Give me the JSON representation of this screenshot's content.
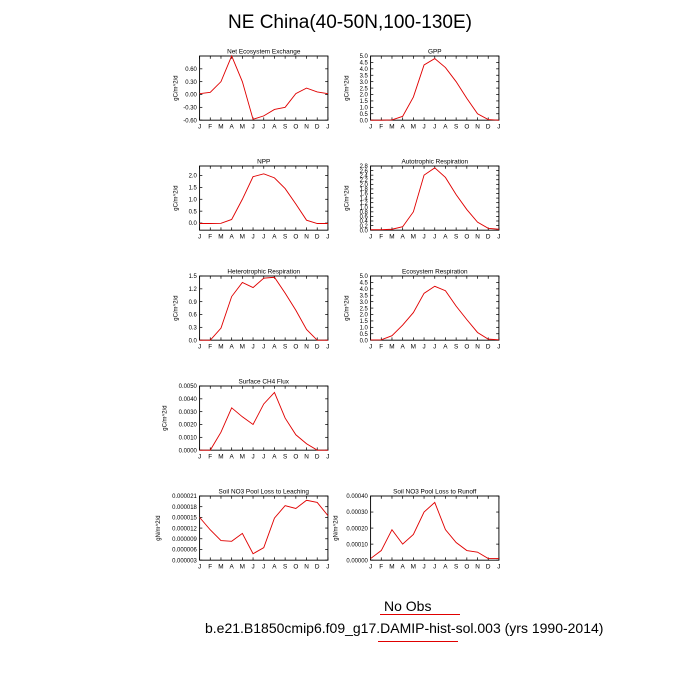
{
  "title": "NE China(40-50N,100-130E)",
  "legend": {
    "label": "No Obs",
    "color": "#e00000"
  },
  "case_label": "b.e21.B1850cmip6.f09_g17.DAMIP-hist-sol.003 (yrs 1990-2014)",
  "line_color": "#e00000",
  "chart_data": [
    {
      "type": "line",
      "title": "Net Ecosystem Exchange",
      "ylabel": "gC/m^2/d",
      "categories": [
        "J",
        "F",
        "M",
        "A",
        "M",
        "J",
        "J",
        "A",
        "S",
        "O",
        "N",
        "D",
        "J"
      ],
      "values": [
        0.02,
        0.05,
        0.3,
        0.9,
        0.3,
        -0.58,
        -0.5,
        -0.35,
        -0.3,
        0.02,
        0.15,
        0.06,
        0.02
      ],
      "ylim": [
        -0.6,
        0.9
      ],
      "yticks": [
        "-0.60",
        "-0.30",
        "0.00",
        "0.30",
        "0.60"
      ],
      "ytick_values": [
        -0.6,
        -0.3,
        0.0,
        0.3,
        0.6
      ]
    },
    {
      "type": "line",
      "title": "GPP",
      "ylabel": "gC/m^2/d",
      "categories": [
        "J",
        "F",
        "M",
        "A",
        "M",
        "J",
        "J",
        "A",
        "S",
        "O",
        "N",
        "D",
        "J"
      ],
      "values": [
        0.0,
        0.0,
        0.02,
        0.3,
        1.8,
        4.3,
        4.8,
        4.1,
        3.0,
        1.7,
        0.5,
        0.05,
        0.0
      ],
      "ylim": [
        0,
        5
      ],
      "yticks": [
        "0.0",
        "0.5",
        "1.0",
        "1.5",
        "2.0",
        "2.5",
        "3.0",
        "3.5",
        "4.0",
        "4.5",
        "5.0"
      ],
      "ytick_values": [
        0,
        0.5,
        1,
        1.5,
        2,
        2.5,
        3,
        3.5,
        4,
        4.5,
        5
      ]
    },
    {
      "type": "line",
      "title": "NPP",
      "ylabel": "gC/m^2/d",
      "categories": [
        "J",
        "F",
        "M",
        "A",
        "M",
        "J",
        "J",
        "A",
        "S",
        "O",
        "N",
        "D",
        "J"
      ],
      "values": [
        -0.02,
        -0.02,
        -0.01,
        0.15,
        1.0,
        1.95,
        2.07,
        1.9,
        1.45,
        0.8,
        0.12,
        -0.02,
        -0.02
      ],
      "ylim": [
        -0.3,
        2.4
      ],
      "yticks": [
        "0.0",
        "0.5",
        "1.0",
        "1.5",
        "2.0"
      ],
      "ytick_values": [
        0,
        0.5,
        1,
        1.5,
        2
      ]
    },
    {
      "type": "line",
      "title": "Autotrophic Respiration",
      "ylabel": "gC/m^2/d",
      "categories": [
        "J",
        "F",
        "M",
        "A",
        "M",
        "J",
        "J",
        "A",
        "S",
        "O",
        "N",
        "D",
        "J"
      ],
      "values": [
        0.02,
        0.02,
        0.04,
        0.15,
        0.8,
        2.4,
        2.72,
        2.3,
        1.55,
        0.9,
        0.35,
        0.08,
        0.04
      ],
      "ylim": [
        0,
        2.8
      ],
      "yticks": [
        "0.0",
        "0.2",
        "0.4",
        "0.6",
        "0.8",
        "1.0",
        "1.2",
        "1.4",
        "1.6",
        "1.8",
        "2.0",
        "2.2",
        "2.4",
        "2.6",
        "2.8"
      ],
      "ytick_values": [
        0,
        0.2,
        0.4,
        0.6,
        0.8,
        1.0,
        1.2,
        1.4,
        1.6,
        1.8,
        2.0,
        2.2,
        2.4,
        2.6,
        2.8
      ]
    },
    {
      "type": "line",
      "title": "Heterotrophic Respiration",
      "ylabel": "gC/m^2/d",
      "categories": [
        "J",
        "F",
        "M",
        "A",
        "M",
        "J",
        "J",
        "A",
        "S",
        "O",
        "N",
        "D",
        "J"
      ],
      "values": [
        0.0,
        0.0,
        0.28,
        1.02,
        1.35,
        1.23,
        1.45,
        1.47,
        1.1,
        0.7,
        0.25,
        0.0,
        0.0
      ],
      "ylim": [
        0,
        1.5
      ],
      "yticks": [
        "0.0",
        "0.3",
        "0.6",
        "0.9",
        "1.2",
        "1.5"
      ],
      "ytick_values": [
        0,
        0.3,
        0.6,
        0.9,
        1.2,
        1.5
      ]
    },
    {
      "type": "line",
      "title": "Ecosystem Respiration",
      "ylabel": "gC/m^2/d",
      "categories": [
        "J",
        "F",
        "M",
        "A",
        "M",
        "J",
        "J",
        "A",
        "S",
        "O",
        "N",
        "D",
        "J"
      ],
      "values": [
        0.02,
        0.03,
        0.35,
        1.18,
        2.15,
        3.65,
        4.2,
        3.85,
        2.65,
        1.6,
        0.6,
        0.08,
        0.03
      ],
      "ylim": [
        0,
        5
      ],
      "yticks": [
        "0.0",
        "0.5",
        "1.0",
        "1.5",
        "2.0",
        "2.5",
        "3.0",
        "3.5",
        "4.0",
        "4.5",
        "5.0"
      ],
      "ytick_values": [
        0,
        0.5,
        1,
        1.5,
        2,
        2.5,
        3,
        3.5,
        4,
        4.5,
        5
      ]
    },
    {
      "type": "line",
      "title": "Surface CH4 Flux",
      "ylabel": "gC/m^2/d",
      "categories": [
        "J",
        "F",
        "M",
        "A",
        "M",
        "J",
        "J",
        "A",
        "S",
        "O",
        "N",
        "D",
        "J"
      ],
      "values": [
        0.0,
        0.0,
        0.0014,
        0.0033,
        0.0026,
        0.002,
        0.0036,
        0.0045,
        0.0025,
        0.0012,
        0.0005,
        0.0,
        0.0
      ],
      "ylim": [
        0,
        0.005
      ],
      "yticks": [
        "0.0000",
        "0.0010",
        "0.0020",
        "0.0030",
        "0.0040",
        "0.0050"
      ],
      "ytick_values": [
        0,
        0.001,
        0.002,
        0.003,
        0.004,
        0.005
      ]
    },
    {
      "type": "line",
      "title": "Soil NO3 Pool Loss to Leaching",
      "ylabel": "gN/m^2/d",
      "categories": [
        "J",
        "F",
        "M",
        "A",
        "M",
        "J",
        "J",
        "A",
        "S",
        "O",
        "N",
        "D",
        "J"
      ],
      "values": [
        1.5e-05,
        1.15e-05,
        8.5e-06,
        8.3e-06,
        1.05e-05,
        4.8e-06,
        6.5e-06,
        1.48e-05,
        1.83e-05,
        1.75e-05,
        1.98e-05,
        1.92e-05,
        1.55e-05
      ],
      "ylim": [
        3e-06,
        2.1e-05
      ],
      "yticks": [
        "0.000003",
        "0.000006",
        "0.000009",
        "0.000012",
        "0.000015",
        "0.000018",
        "0.000021"
      ],
      "ytick_values": [
        3e-06,
        6e-06,
        9e-06,
        1.2e-05,
        1.5e-05,
        1.8e-05,
        2.1e-05
      ]
    },
    {
      "type": "line",
      "title": "Soil NO3 Pool Loss to Runoff",
      "ylabel": "gN/m^2/d",
      "categories": [
        "J",
        "F",
        "M",
        "A",
        "M",
        "J",
        "J",
        "A",
        "S",
        "O",
        "N",
        "D",
        "J"
      ],
      "values": [
        1e-05,
        6e-05,
        0.00019,
        0.0001,
        0.00016,
        0.0003,
        0.00036,
        0.00019,
        0.00011,
        6e-05,
        5e-05,
        1e-05,
        1e-05
      ],
      "ylim": [
        0,
        0.0004
      ],
      "yticks": [
        "0.00000",
        "0.00010",
        "0.00020",
        "0.00030",
        "0.00040"
      ],
      "ytick_values": [
        0,
        0.0001,
        0.0002,
        0.0003,
        0.0004
      ]
    }
  ]
}
